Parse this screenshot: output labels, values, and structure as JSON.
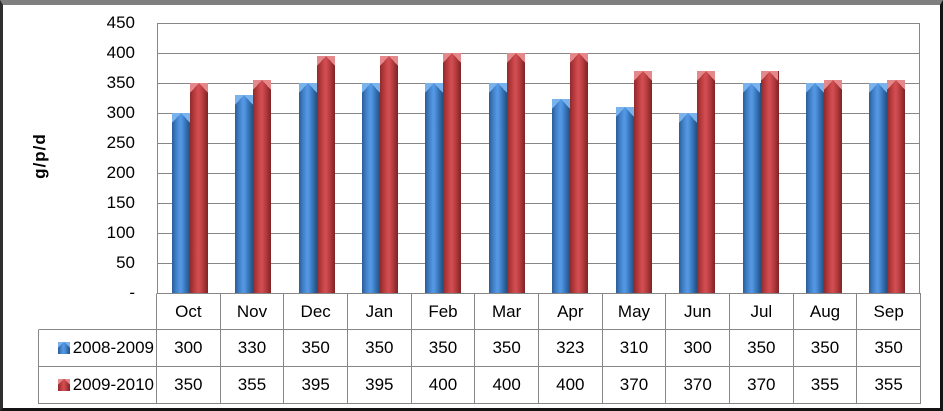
{
  "chart_data": {
    "type": "bar",
    "title": "",
    "ylabel": "g/p/d",
    "categories": [
      "Oct",
      "Nov",
      "Dec",
      "Jan",
      "Feb",
      "Mar",
      "Apr",
      "May",
      "Jun",
      "Jul",
      "Aug",
      "Sep"
    ],
    "series": [
      {
        "name": "2008-2009",
        "color": "#4A7EBB",
        "values": [
          300,
          330,
          350,
          350,
          350,
          350,
          323,
          310,
          300,
          350,
          350,
          350
        ]
      },
      {
        "name": "2009-2010",
        "color": "#BE4B48",
        "values": [
          350,
          355,
          395,
          395,
          400,
          400,
          400,
          370,
          370,
          370,
          355,
          355
        ]
      }
    ],
    "ylim": [
      0,
      450
    ],
    "ytick_step": 50,
    "ytick_labels": [
      "450",
      "400",
      "350",
      "300",
      "250",
      "200",
      "150",
      "100",
      "50",
      "-"
    ],
    "grid": true,
    "legend_position": "table-left",
    "gridline_color": "#878787",
    "frame_top_color": "#7f7f7f",
    "frame_border_color": "#141414"
  }
}
